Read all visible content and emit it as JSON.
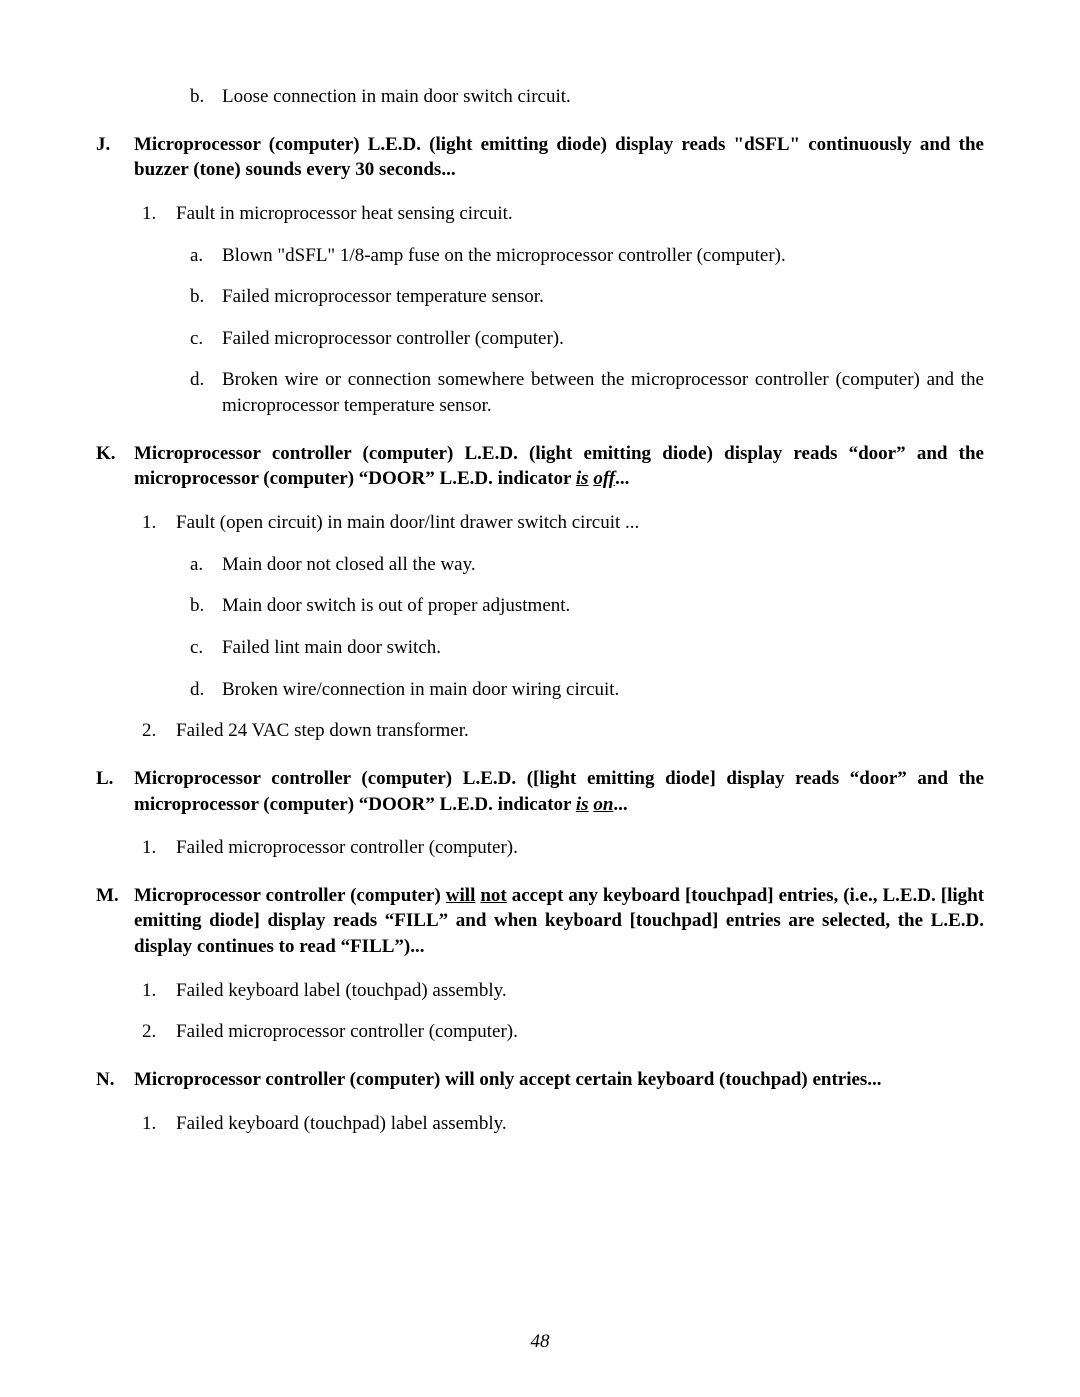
{
  "page_number": "48",
  "colors": {
    "text": "#000000",
    "background": "#ffffff"
  },
  "typography": {
    "family": "Times New Roman",
    "body_size_pt": 14,
    "bold_weight": 700
  },
  "top_continuation": {
    "label": "b.",
    "text": "Loose connection in main door switch circuit."
  },
  "sections": {
    "J": {
      "label": "J.",
      "heading_plain": "Microprocessor (computer) L.E.D. (light emitting diode) display reads \"dSFL\" continuously and the buzzer (tone) sounds every 30 seconds...",
      "items": {
        "1": {
          "label": "1.",
          "text": "Fault in microprocessor heat sensing circuit.",
          "sub": {
            "a": {
              "label": "a.",
              "text": "Blown \"dSFL\" 1/8-amp fuse on the microprocessor controller (computer)."
            },
            "b": {
              "label": "b.",
              "text": "Failed microprocessor temperature sensor."
            },
            "c": {
              "label": "c.",
              "text": "Failed microprocessor controller (computer)."
            },
            "d": {
              "label": "d.",
              "text": "Broken wire or connection somewhere between the microprocessor controller (computer) and the microprocessor temperature sensor."
            }
          }
        }
      }
    },
    "K": {
      "label": "K.",
      "heading_runs": [
        {
          "t": "Microprocessor controller (computer) L.E.D. (light emitting diode) display reads “door” and the microprocessor (computer) “DOOR” L.E.D. indicator "
        },
        {
          "t": "is",
          "style": "iu"
        },
        {
          "t": " "
        },
        {
          "t": "off",
          "style": "iu"
        },
        {
          "t": "..."
        }
      ],
      "items": {
        "1": {
          "label": "1.",
          "text": "Fault (open circuit) in main door/lint drawer switch circuit  ...",
          "sub": {
            "a": {
              "label": "a.",
              "text": "Main door not closed all the way."
            },
            "b": {
              "label": "b.",
              "text": "Main door switch is out of proper adjustment."
            },
            "c": {
              "label": "c.",
              "text": "Failed lint main door switch."
            },
            "d": {
              "label": "d.",
              "text": "Broken wire/connection in main door wiring circuit."
            }
          }
        },
        "2": {
          "label": "2.",
          "text": "Failed 24 VAC step down transformer."
        }
      }
    },
    "L": {
      "label": "L.",
      "heading_runs": [
        {
          "t": "Microprocessor controller (computer) L.E.D. ([light emitting diode] display reads “door” and the microprocessor (computer) “DOOR” L.E.D. indicator "
        },
        {
          "t": "is",
          "style": "iu"
        },
        {
          "t": " "
        },
        {
          "t": "on",
          "style": "iu"
        },
        {
          "t": "..."
        }
      ],
      "items": {
        "1": {
          "label": "1.",
          "text": "Failed microprocessor controller (computer)."
        }
      }
    },
    "M": {
      "label": "M.",
      "heading_runs": [
        {
          "t": "Microprocessor controller (computer) "
        },
        {
          "t": "will",
          "style": "u"
        },
        {
          "t": " "
        },
        {
          "t": "not",
          "style": "u"
        },
        {
          "t": " accept any keyboard [touchpad] entries, (i.e., L.E.D. [light emitting diode] display reads “FILL” and when keyboard [touchpad] entries are selected, the L.E.D. display continues to read “FILL”)..."
        }
      ],
      "items": {
        "1": {
          "label": "1.",
          "text": "Failed keyboard label (touchpad) assembly."
        },
        "2": {
          "label": "2.",
          "text": "Failed microprocessor controller (computer)."
        }
      }
    },
    "N": {
      "label": "N.",
      "heading_plain": "Microprocessor controller (computer) will only accept certain keyboard (touchpad) entries...",
      "items": {
        "1": {
          "label": "1.",
          "text": "Failed keyboard (touchpad) label assembly."
        }
      }
    }
  }
}
